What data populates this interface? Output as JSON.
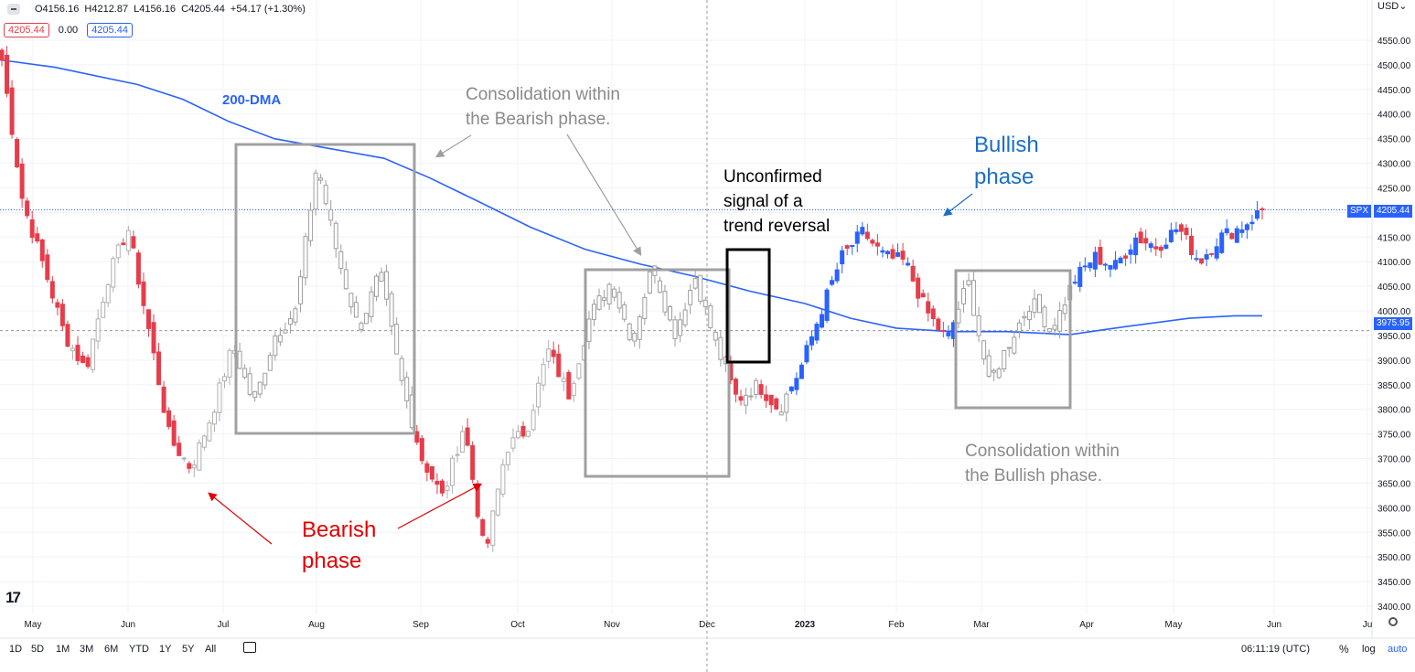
{
  "legend": {
    "open": "O4156.16",
    "high": "H4212.87",
    "low": "L4156.16",
    "close": "C4205.44",
    "change": "+54.17 (+1.30%)",
    "badge_left": "4205.44",
    "badge_mid": "0.00",
    "badge_right": "4205.44"
  },
  "currency": "USD",
  "symbol_label": "SPX",
  "last_price_label": "4205.44",
  "dma_price_label": "3975.95",
  "colors": {
    "up": "#2962ff",
    "down": "#e63d4a",
    "neutral": "#9e9e9e",
    "dma": "#2962ff"
  },
  "annotations": {
    "dma_label": "200-DMA",
    "consol_bear_1": "Consolidation within",
    "consol_bear_2": "the Bearish phase.",
    "unconfirmed_1": "Unconfirmed",
    "unconfirmed_2": "signal of a",
    "unconfirmed_3": "trend reversal",
    "bullish_1": "Bullish",
    "bullish_2": "phase",
    "bearish_1": "Bearish",
    "bearish_2": "phase",
    "consol_bull_1": "Consolidation within",
    "consol_bull_2": "the Bullish phase."
  },
  "toolbar": {
    "timeframes": [
      "1D",
      "5D",
      "1M",
      "3M",
      "6M",
      "YTD",
      "1Y",
      "5Y",
      "All"
    ],
    "clock": "06:11:19 (UTC)",
    "percent": "%",
    "log": "log",
    "auto": "auto"
  },
  "chart_data": {
    "type": "candlestick",
    "y_ticks": [
      3400,
      3450,
      3500,
      3550,
      3600,
      3650,
      3700,
      3750,
      3800,
      3850,
      3900,
      3950,
      4000,
      4050,
      4100,
      4150,
      4200,
      4250,
      4300,
      4350,
      4400,
      4450,
      4500,
      4550
    ],
    "ylim": [
      3388,
      4590
    ],
    "x_tick_labels": [
      "May",
      "Jun",
      "Jul",
      "Aug",
      "Sep",
      "Oct",
      "Nov",
      "Dec",
      "2023",
      "Feb",
      "Mar",
      "Apr",
      "May",
      "Jun",
      "Ju"
    ],
    "series": [
      {
        "name": "SPX",
        "kind": "candles",
        "last": 4205.44
      },
      {
        "name": "200-DMA",
        "kind": "line",
        "last": 3975.95
      }
    ],
    "anchors": [
      4510,
      4220,
      4090,
      3950,
      3880,
      4060,
      4170,
      3960,
      3740,
      3680,
      3790,
      3930,
      3810,
      3950,
      4000,
      4300,
      4110,
      3960,
      4080,
      3860,
      3700,
      3620,
      3770,
      3500,
      3720,
      3760,
      3920,
      3830,
      3990,
      4060,
      3940,
      4095,
      3950,
      4070,
      3930,
      3820,
      3850,
      3800,
      3880,
      4000,
      4110,
      4160,
      4110,
      4100,
      4000,
      3940,
      4060,
      3850,
      3940,
      4020,
      3960,
      4060,
      4110,
      4090,
      4150,
      4130,
      4170,
      4100,
      4150,
      4170,
      4205
    ]
  }
}
